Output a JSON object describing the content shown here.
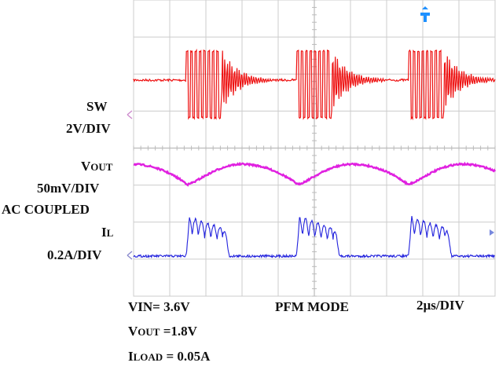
{
  "chart_data": {
    "type": "line",
    "title": "",
    "grid": true,
    "x_scale": "2µs/DIV",
    "x_divisions": 10,
    "y_divisions": 8,
    "series": [
      {
        "name": "SW",
        "scale": "2V/DIV",
        "color": "#ee1111",
        "description_values": {
          "burst_starts_div": [
            1.45,
            4.5,
            7.6
          ],
          "burst_length_div": 1.55,
          "switching_cycles_per_burst": 8
        }
      },
      {
        "name": "VOUT",
        "scale": "50mV/DIV",
        "coupling": "AC COUPLED",
        "color": "#e020e0",
        "description_values": {
          "valleys_div": [
            1.5,
            4.55,
            7.6
          ],
          "peaks_div": [
            3.0,
            6.0,
            9.0
          ]
        }
      },
      {
        "name": "IL",
        "scale": "0.2A/DIV",
        "color": "#2222dd",
        "description_values": {
          "burst_starts_div": [
            1.45,
            4.5,
            7.6
          ],
          "peak_current_div": 1.0
        }
      }
    ]
  },
  "labels": {
    "sw_name": "SW",
    "sw_scale": "2V/DIV",
    "vout_v": "V",
    "vout_sub": "OUT",
    "vout_scale": "50mV/DIV",
    "vout_coupling": "AC COUPLED",
    "il_i": "I",
    "il_sub": "L",
    "il_scale": "0.2A/DIV"
  },
  "footer": {
    "vin": "VIN= 3.6V",
    "mode": "PFM MODE",
    "timebase": "2µs/DIV",
    "vout_v": "V",
    "vout_sub": "OUT",
    "vout_val": " =1.8V",
    "iload_i": "I",
    "iload_sub": "LOAD",
    "iload_val": " = 0.05A"
  },
  "colors": {
    "sw": "#ee1111",
    "vout": "#e020e0",
    "il": "#2222dd",
    "grid": "#cccccc",
    "trigger": "#1e90ff"
  }
}
